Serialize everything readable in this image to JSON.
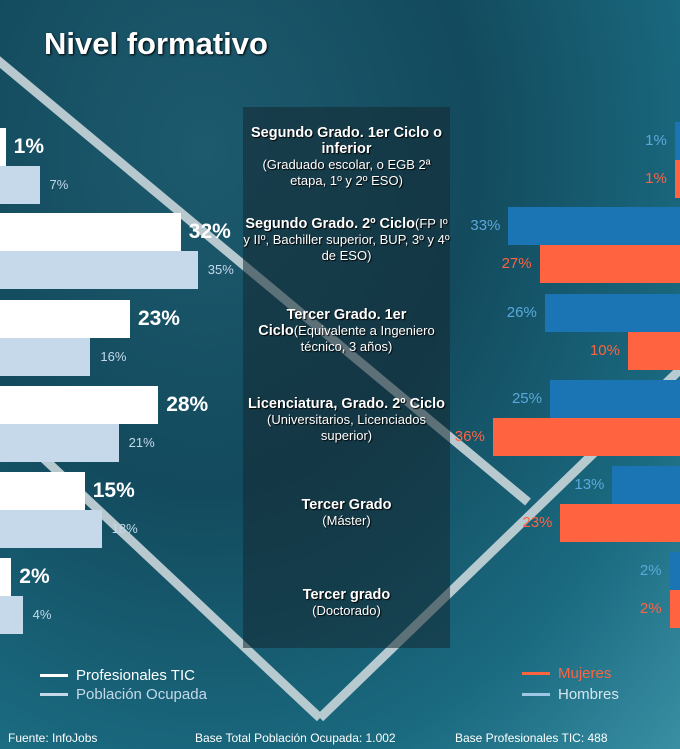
{
  "title": "Nivel formativo",
  "chart_data": {
    "type": "bar",
    "title": "Nivel formativo",
    "categories": [
      {
        "bold": "Segundo Grado. 1er Ciclo o inferior",
        "detail": " (Graduado escolar, o EGB 2ª etapa, 1º y 2º ESO)"
      },
      {
        "bold": "Segundo Grado. 2º Ciclo",
        "detail": "(FP Iº y IIº, Bachiller superior, BUP, 3º y 4º de ESO)"
      },
      {
        "bold": "Tercer Grado. 1er Ciclo",
        "detail": "(Equivalente a Ingeniero técnico, 3 años)"
      },
      {
        "bold": "Licenciatura, Grado. 2º Ciclo",
        "detail": " (Universitarios, Licenciados superior)"
      },
      {
        "bold": "Tercer Grado",
        "detail": "(Máster)"
      },
      {
        "bold": "Tercer grado",
        "detail": "(Doctorado)"
      }
    ],
    "left_series": [
      {
        "name": "Profesionales TIC",
        "color": "#ffffff",
        "values": [
          1,
          32,
          23,
          28,
          15,
          2
        ]
      },
      {
        "name": "Población Ocupada",
        "color": "#c5d9ea",
        "values": [
          7,
          35,
          16,
          21,
          18,
          4
        ]
      }
    ],
    "right_series": [
      {
        "name": "Hombres",
        "color": "#1b75b5",
        "label_color": "#5aa9dc",
        "values": [
          1,
          33,
          26,
          25,
          13,
          2
        ]
      },
      {
        "name": "Mujeres",
        "color": "#ff6340",
        "label_color": "#ff6340",
        "values": [
          1,
          27,
          10,
          36,
          23,
          2
        ]
      }
    ],
    "unit": "%"
  },
  "footer": {
    "source": "Fuente: InfoJobs",
    "base_total": "Base Total Población Ocupada: 1.002",
    "base_tic": "Base Profesionales TIC: 488"
  }
}
